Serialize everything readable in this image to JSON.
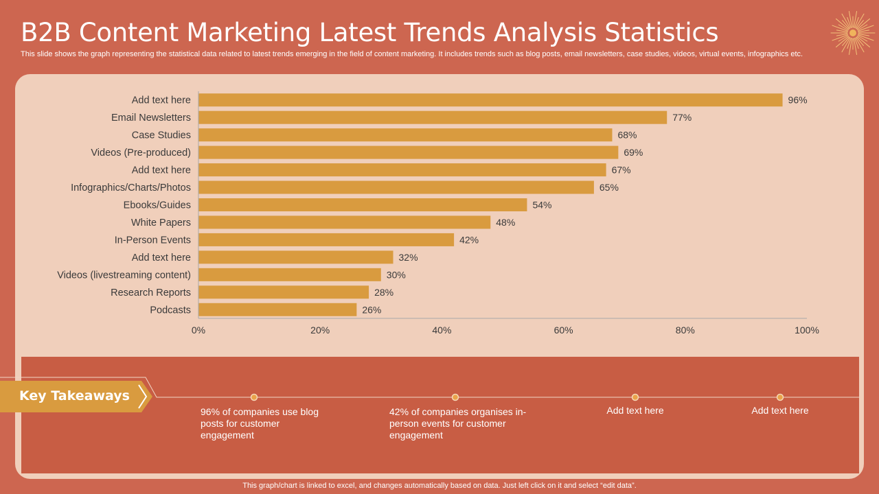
{
  "slide": {
    "title": "B2B Content Marketing Latest Trends Analysis Statistics",
    "subtitle": "This slide shows the graph representing the statistical data related to latest trends emerging in the field of content marketing. It includes trends such as blog posts, email newsletters, case studies, videos, virtual events, infographics etc.",
    "footer": "This graph/chart is linked to excel,  and changes automatically based on data. Just left click on it and select “edit data”."
  },
  "colors": {
    "background": "#cd6650",
    "panel": "#f0cfbb",
    "bar": "#d99b3f",
    "takeaway_panel": "#c85d44",
    "banner": "#d99b3f",
    "text_dark": "#3a3a3a"
  },
  "icons": {
    "decoration": "sun-burst-icon"
  },
  "chart_data": {
    "type": "bar",
    "orientation": "horizontal",
    "categories": [
      "Add text here",
      "Email Newsletters",
      "Case Studies",
      "Videos (Pre-produced)",
      "Add text here",
      "Infographics/Charts/Photos",
      "Ebooks/Guides",
      "White Papers",
      "In-Person Events",
      "Add text here",
      "Videos (livestreaming content)",
      "Research Reports",
      "Podcasts"
    ],
    "values": [
      96,
      77,
      68,
      69,
      67,
      65,
      54,
      48,
      42,
      32,
      30,
      28,
      26
    ],
    "value_labels": [
      "96%",
      "77%",
      "68%",
      "69%",
      "67%",
      "65%",
      "54%",
      "48%",
      "42%",
      "32%",
      "30%",
      "28%",
      "26%"
    ],
    "xlim": [
      0,
      100
    ],
    "x_ticks": [
      0,
      20,
      40,
      60,
      80,
      100
    ],
    "x_tick_labels": [
      "0%",
      "20%",
      "40%",
      "60%",
      "80%",
      "100%"
    ],
    "grid": false,
    "legend": "none"
  },
  "takeaways": {
    "label": "Key Takeaways",
    "items": [
      {
        "text": "96% of companies use blog posts for customer engagement"
      },
      {
        "text": "42% of companies organises in-person events for customer engagement"
      },
      {
        "text": "Add text here"
      },
      {
        "text": "Add text here"
      }
    ]
  }
}
